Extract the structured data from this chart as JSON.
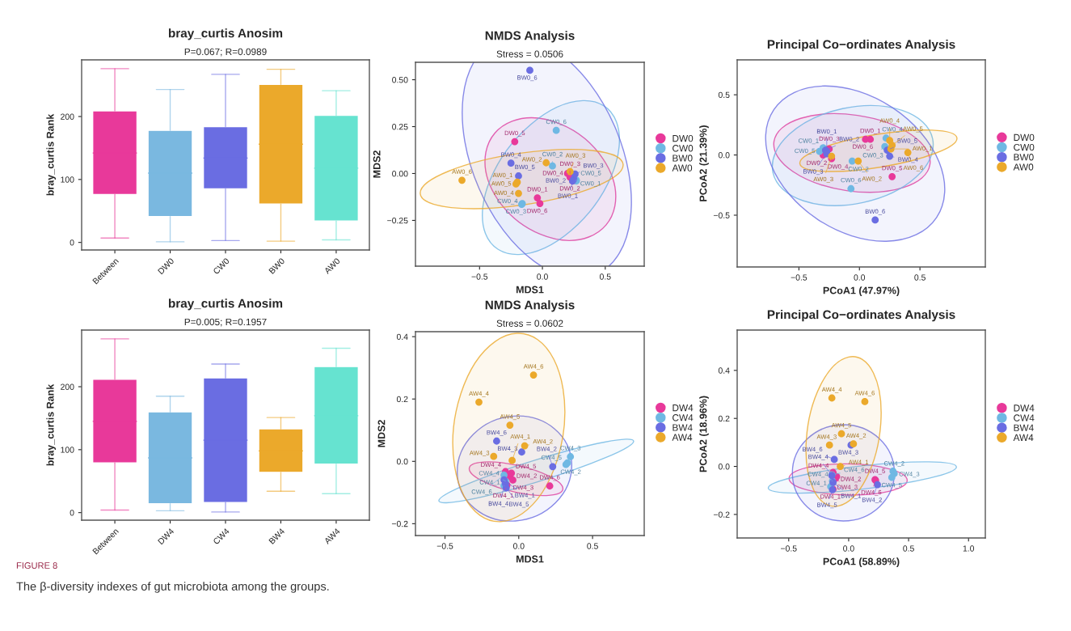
{
  "chart_data": [
    {
      "type": "box",
      "title": "bray_curtis Anosim",
      "subtitle": "P=0.067; R=0.0989",
      "ylabel": "bray_curtis Rank",
      "categories": [
        "Between",
        "DW0",
        "CW0",
        "BW0",
        "AW0"
      ],
      "colors": [
        "#e8399a",
        "#7ab8e0",
        "#6a6de2",
        "#eba92b",
        "#66e3d0"
      ],
      "boxes": [
        {
          "low": 7,
          "q1": 76,
          "median": 142,
          "q3": 209,
          "high": 276
        },
        {
          "low": 1,
          "q1": 41,
          "median": 110,
          "q3": 178,
          "high": 243
        },
        {
          "low": 3,
          "q1": 85,
          "median": 134,
          "q3": 184,
          "high": 267
        },
        {
          "low": 2,
          "q1": 61,
          "median": 156,
          "q3": 251,
          "high": 275
        },
        {
          "low": 4,
          "q1": 34,
          "median": 118,
          "q3": 202,
          "high": 241
        }
      ],
      "ylim": [
        -12,
        290
      ],
      "yticks": [
        0,
        100,
        200
      ],
      "annotations": [
        "FIGURE 8",
        "The β-diversity indexes of gut microbiota among the groups."
      ]
    },
    {
      "type": "scatter",
      "title": "NMDS Analysis",
      "subtitle": "Stress = 0.0506",
      "xlabel": "MDS1",
      "ylabel": "MDS2",
      "xlim": [
        -1.01,
        0.81
      ],
      "ylim": [
        -0.494,
        0.593
      ],
      "xticks": [
        {
          "value": -0.5,
          "label": "−0.5"
        },
        {
          "value": 0,
          "label": "0.0"
        },
        {
          "value": 0.5,
          "label": "0.5"
        }
      ],
      "yticks": [
        {
          "value": -0.25,
          "label": "−0.25"
        },
        {
          "value": 0,
          "label": "0.00"
        },
        {
          "value": 0.25,
          "label": "0.25"
        },
        {
          "value": 0.5,
          "label": "0.50"
        }
      ],
      "legend": "right",
      "marker": "circle",
      "series": [
        {
          "name": "DW0",
          "color": "#e8399a",
          "x": [
            -0.04,
            0.24,
            0.22,
            0.2,
            -0.22,
            -0.02
          ],
          "values": [
            -0.13,
            -0.04,
            -0.02,
            0.0,
            0.17,
            -0.16
          ],
          "value_labels": [
            "DW0_1",
            "DW0_2",
            "DW0_3",
            "DW0_4",
            "DW0_5",
            "DW0_6"
          ]
        },
        {
          "name": "CW0",
          "color": "#6fb8e3",
          "x": [
            0.27,
            0.08,
            -0.16,
            -0.165,
            0.27,
            0.11
          ],
          "values": [
            -0.04,
            0.04,
            -0.16,
            -0.165,
            -0.035,
            0.23
          ],
          "value_labels": [
            "CW0_1",
            "CW0_2",
            "CW0_3",
            "CW0_4",
            "CW0_5",
            "CW0_6"
          ]
        },
        {
          "name": "BW0",
          "color": "#6a6de2",
          "x": [
            0.25,
            0.24,
            0.26,
            -0.25,
            -0.19,
            -0.1
          ],
          "values": [
            -0.03,
            -0.04,
            -0.003,
            0.055,
            -0.013,
            0.55
          ],
          "value_labels": [
            "BW0_1",
            "BW0_2",
            "BW0_3",
            "BW0_4",
            "BW0_5",
            "BW0_6"
          ]
        },
        {
          "name": "AW0",
          "color": "#eba92b",
          "x": [
            -0.2,
            0.03,
            0.22,
            -0.19,
            -0.21,
            -0.64
          ],
          "values": [
            -0.046,
            0.057,
            0.01,
            -0.106,
            -0.056,
            -0.036
          ],
          "value_labels": [
            "AW0_1",
            "AW0_2",
            "AW0_3",
            "AW0_4",
            "AW0_5",
            "AW0_6"
          ]
        }
      ]
    },
    {
      "type": "scatter",
      "title": "Principal Co−ordinates Analysis",
      "xlabel": "PCoA1 (47.97%)",
      "ylabel": "PCoA2 (21.39%)",
      "xlim": [
        -1.01,
        1.04
      ],
      "ylim": [
        -0.93,
        0.79
      ],
      "xticks": [
        {
          "value": -0.5,
          "label": "−0.5"
        },
        {
          "value": 0,
          "label": "0.0"
        },
        {
          "value": 0.5,
          "label": "0.5"
        }
      ],
      "yticks": [
        {
          "value": -0.5,
          "label": "−0.5"
        },
        {
          "value": 0,
          "label": "0.0"
        },
        {
          "value": 0.5,
          "label": "0.5"
        }
      ],
      "legend": "right",
      "marker": "circle",
      "series": [
        {
          "name": "DW0",
          "color": "#e8399a",
          "x": [
            0.09,
            -0.3,
            -0.25,
            -0.23,
            0.27,
            0.05
          ],
          "values": [
            0.13,
            0.0,
            0.05,
            -0.03,
            -0.18,
            0.13
          ],
          "value_labels": [
            "DW0_1",
            "DW0_2",
            "DW0_3",
            "DW0_4",
            "DW0_5",
            "DW0_6"
          ]
        },
        {
          "name": "CW0",
          "color": "#6fb8e3",
          "x": [
            -0.3,
            -0.06,
            0.21,
            0.22,
            -0.33,
            -0.07
          ],
          "values": [
            0.06,
            -0.05,
            0.07,
            0.14,
            0.03,
            -0.28
          ],
          "value_labels": [
            "CW0_1",
            "CW0_2",
            "CW0_3",
            "CW0_4",
            "CW0_5",
            "CW0_6"
          ]
        },
        {
          "name": "BW0",
          "color": "#6a6de2",
          "x": [
            -0.27,
            -0.28,
            -0.27,
            0.25,
            0.23,
            0.13
          ],
          "values": [
            0.03,
            0.04,
            0.01,
            -0.01,
            0.04,
            -0.54
          ],
          "value_labels": [
            "BW0_1",
            "BW0_2",
            "BW0_3",
            "BW0_4",
            "BW0_5",
            "BW0_6"
          ]
        },
        {
          "name": "AW0",
          "color": "#eba92b",
          "x": [
            0.26,
            -0.01,
            -0.23,
            0.25,
            0.27,
            0.4
          ],
          "values": [
            0.05,
            -0.05,
            -0.01,
            0.12,
            0.08,
            0.02
          ],
          "value_labels": [
            "AW0_1",
            "AW0_2",
            "AW0_3",
            "AW0_4",
            "AW0_5",
            "AW0_6"
          ]
        }
      ]
    },
    {
      "type": "box",
      "title": "bray_curtis Anosim",
      "subtitle": "P=0.005; R=0.1957",
      "ylabel": "bray_curtis Rank",
      "categories": [
        "Between",
        "DW4",
        "CW4",
        "BW4",
        "AW4"
      ],
      "colors": [
        "#e8399a",
        "#7ab8e0",
        "#6a6de2",
        "#eba92b",
        "#66e3d0"
      ],
      "boxes": [
        {
          "low": 4,
          "q1": 79,
          "median": 145,
          "q3": 212,
          "high": 276
        },
        {
          "low": 3,
          "q1": 14,
          "median": 87,
          "q3": 160,
          "high": 185
        },
        {
          "low": 1,
          "q1": 16,
          "median": 115,
          "q3": 214,
          "high": 236
        },
        {
          "low": 34,
          "q1": 64,
          "median": 98,
          "q3": 133,
          "high": 151
        },
        {
          "low": 30,
          "q1": 77,
          "median": 154,
          "q3": 232,
          "high": 261
        }
      ],
      "ylim": [
        -12,
        290
      ],
      "yticks": [
        0,
        100,
        200
      ]
    },
    {
      "type": "scatter",
      "title": "NMDS Analysis",
      "subtitle": "Stress = 0.0602",
      "xlabel": "MDS1",
      "ylabel": "MDS2",
      "xlim": [
        -0.7,
        0.85
      ],
      "ylim": [
        -0.238,
        0.416
      ],
      "xticks": [
        {
          "value": -0.5,
          "label": "−0.5"
        },
        {
          "value": 0,
          "label": "0.0"
        },
        {
          "value": 0.5,
          "label": "0.5"
        }
      ],
      "yticks": [
        {
          "value": -0.2,
          "label": "−0.2"
        },
        {
          "value": 0,
          "label": "0.0"
        },
        {
          "value": 0.2,
          "label": "0.2"
        },
        {
          "value": 0.4,
          "label": "0.4"
        }
      ],
      "legend": "right",
      "marker": "circle",
      "series": [
        {
          "name": "DW4",
          "color": "#e8399a",
          "x": [
            -0.08,
            -0.06,
            -0.04,
            -0.09,
            -0.05,
            0.21
          ],
          "values": [
            -0.076,
            -0.048,
            -0.06,
            -0.033,
            -0.038,
            -0.079
          ],
          "value_labels": [
            "DW4_1",
            "DW4_2",
            "DW4_3",
            "DW4_4",
            "DW4_5",
            "DW4_6"
          ]
        },
        {
          "name": "CW4",
          "color": "#6fb8e3",
          "x": [
            -0.1,
            0.33,
            0.35,
            -0.09,
            0.32,
            -0.1
          ],
          "values": [
            -0.078,
            -0.005,
            0.015,
            -0.063,
            -0.01,
            -0.044
          ],
          "value_labels": [
            "CW4_1",
            "CW4_2",
            "CW4_3",
            "CW4_4",
            "CW4_5",
            "CW4_6"
          ]
        },
        {
          "name": "BW4",
          "color": "#6a6de2",
          "x": [
            -0.1,
            0.23,
            0.02,
            -0.09,
            -0.085,
            -0.15
          ],
          "values": [
            -0.059,
            -0.017,
            0.03,
            -0.072,
            -0.085,
            0.065
          ],
          "value_labels": [
            "BW4_1",
            "BW4_2",
            "BW4_3",
            "BW4_4",
            "BW4_5",
            "BW4_6"
          ]
        },
        {
          "name": "AW4",
          "color": "#eba92b",
          "x": [
            -0.045,
            0.04,
            -0.17,
            -0.27,
            -0.06,
            0.1
          ],
          "values": [
            0.003,
            0.05,
            0.016,
            0.19,
            0.116,
            0.277
          ],
          "value_labels": [
            "AW4_1",
            "AW4_2",
            "AW4_3",
            "AW4_4",
            "AW4_5",
            "AW4_6"
          ]
        }
      ]
    },
    {
      "type": "scatter",
      "title": "Principal Co−ordinates Analysis",
      "xlabel": "PCoA1 (58.89%)",
      "ylabel": "PCoA2 (18.96%)",
      "xlim": [
        -0.93,
        1.14
      ],
      "ylim": [
        -0.298,
        0.568
      ],
      "xticks": [
        {
          "value": -0.5,
          "label": "−0.5"
        },
        {
          "value": 0,
          "label": "0.0"
        },
        {
          "value": 0.5,
          "label": "0.5"
        },
        {
          "value": 1,
          "label": "1.0"
        }
      ],
      "yticks": [
        {
          "value": -0.2,
          "label": "−0.2"
        },
        {
          "value": 0,
          "label": "0.0"
        },
        {
          "value": 0.2,
          "label": "0.2"
        },
        {
          "value": 0.4,
          "label": "0.4"
        }
      ],
      "legend": "right",
      "marker": "circle",
      "series": [
        {
          "name": "DW4",
          "color": "#e8399a",
          "x": [
            -0.13,
            -0.1,
            -0.11,
            -0.13,
            0.22,
            0.225
          ],
          "values": [
            -0.095,
            -0.042,
            -0.05,
            -0.025,
            -0.055,
            -0.058
          ],
          "value_labels": [
            "DW4_1",
            "DW4_2",
            "DW4_3",
            "DW4_4",
            "DW4_5",
            "DW4_6"
          ]
        },
        {
          "name": "CW4",
          "color": "#6fb8e3",
          "x": [
            -0.15,
            0.38,
            0.37,
            -0.135,
            0.36,
            -0.14
          ],
          "values": [
            -0.084,
            -0.03,
            -0.02,
            -0.061,
            -0.046,
            -0.035
          ],
          "value_labels": [
            "CW4_1",
            "CW4_2",
            "CW4_3",
            "CW4_4",
            "CW4_5",
            "CW4_6"
          ]
        },
        {
          "name": "BW4",
          "color": "#6a6de2",
          "x": [
            -0.13,
            0.24,
            0.02,
            -0.14,
            -0.135,
            -0.12
          ],
          "values": [
            -0.067,
            -0.076,
            0.089,
            -0.038,
            -0.097,
            0.029
          ],
          "value_labels": [
            "BW4_1",
            "BW4_2",
            "BW4_3",
            "BW4_4",
            "BW4_5",
            "BW4_6"
          ]
        },
        {
          "name": "AW4",
          "color": "#eba92b",
          "x": [
            -0.07,
            0.04,
            -0.16,
            -0.14,
            -0.06,
            0.135
          ],
          "values": [
            0.0,
            0.094,
            0.089,
            0.285,
            0.136,
            0.27
          ],
          "value_labels": [
            "AW4_1",
            "AW4_2",
            "AW4_3",
            "AW4_4",
            "AW4_5",
            "AW4_6"
          ]
        }
      ]
    }
  ]
}
